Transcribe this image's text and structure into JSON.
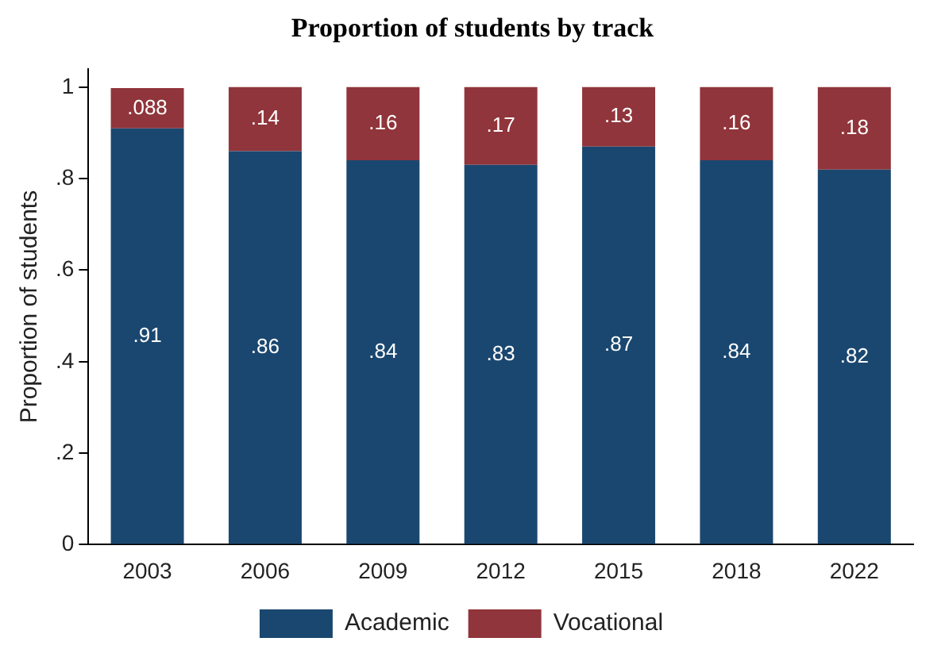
{
  "chart_data": {
    "type": "bar",
    "title": "Proportion of students by track",
    "ylabel": "Proportion of students",
    "categories": [
      "2003",
      "2006",
      "2009",
      "2012",
      "2015",
      "2018",
      "2022"
    ],
    "stacked": true,
    "legend": "bottom",
    "grid": false,
    "ylim": [
      0,
      1.04
    ],
    "yticks": [
      {
        "value": 0,
        "label": "0"
      },
      {
        "value": 0.2,
        "label": ".2"
      },
      {
        "value": 0.4,
        "label": ".4"
      },
      {
        "value": 0.6,
        "label": ".6"
      },
      {
        "value": 0.8,
        "label": ".8"
      },
      {
        "value": 1,
        "label": "1"
      }
    ],
    "series": [
      {
        "name": "Academic",
        "color": "#1a476f",
        "values": [
          0.91,
          0.86,
          0.84,
          0.83,
          0.87,
          0.84,
          0.82
        ],
        "value_labels": [
          ".91",
          ".86",
          ".84",
          ".83",
          ".87",
          ".84",
          ".82"
        ]
      },
      {
        "name": "Vocational",
        "color": "#90353b",
        "values": [
          0.088,
          0.14,
          0.16,
          0.17,
          0.13,
          0.16,
          0.18
        ],
        "value_labels": [
          ".088",
          ".14",
          ".16",
          ".17",
          ".13",
          ".16",
          ".18"
        ]
      }
    ]
  }
}
